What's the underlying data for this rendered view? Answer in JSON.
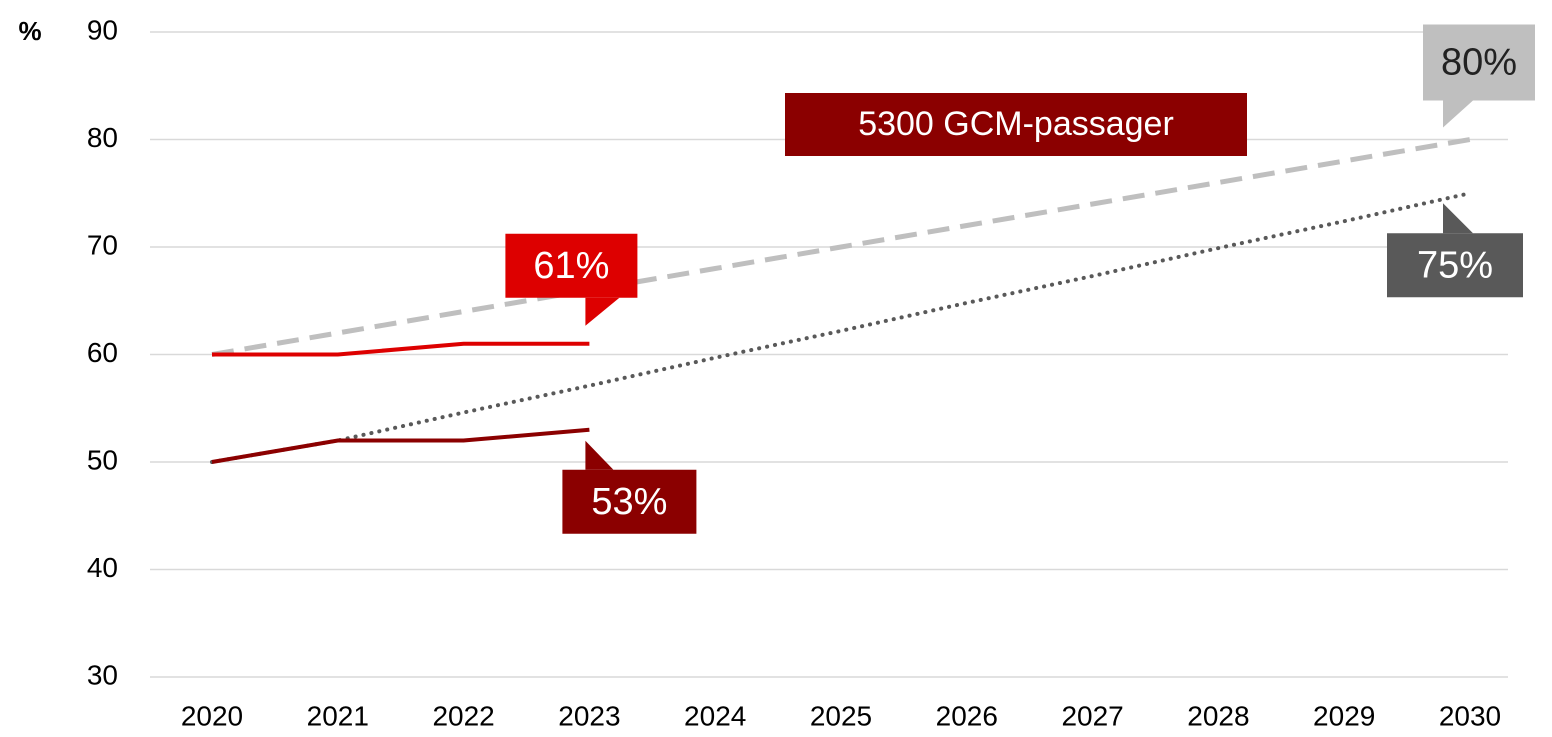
{
  "chart_data": {
    "type": "line",
    "y_label": "%",
    "annotations": [
      "5300 GCM-passager"
    ],
    "annotation_color": "#8b0000",
    "categories": [
      "2020",
      "2021",
      "2022",
      "2023",
      "2024",
      "2025",
      "2026",
      "2027",
      "2028",
      "2029",
      "2030"
    ],
    "series": [
      {
        "color": "#dd0000",
        "style": "solid",
        "values": [
          60,
          60,
          61,
          61,
          null,
          null,
          null,
          null,
          null,
          null,
          null
        ],
        "value_labels": [
          null,
          null,
          null,
          "61%",
          null,
          null,
          null,
          null,
          null,
          null,
          null
        ]
      },
      {
        "color": "#8b0000",
        "style": "solid",
        "values": [
          50,
          52,
          52,
          53,
          null,
          null,
          null,
          null,
          null,
          null,
          null
        ],
        "value_labels": [
          null,
          null,
          null,
          "53%",
          null,
          null,
          null,
          null,
          null,
          null,
          null
        ]
      },
      {
        "color": "#bfbfbf",
        "style": "dashed",
        "values": [
          60,
          62,
          64,
          66,
          68,
          70,
          72,
          74,
          76,
          78,
          80
        ],
        "value_labels": [
          null,
          null,
          null,
          null,
          null,
          null,
          null,
          null,
          null,
          null,
          "80%"
        ]
      },
      {
        "color": "#595959",
        "style": "dotted",
        "values": [
          50,
          52,
          54.6,
          57.1,
          59.7,
          62.2,
          64.8,
          67.3,
          69.9,
          72.4,
          75
        ],
        "value_labels": [
          null,
          null,
          null,
          null,
          null,
          null,
          null,
          null,
          null,
          null,
          "75%"
        ]
      }
    ],
    "ylim": [
      30,
      90
    ],
    "yticks": [
      30,
      40,
      50,
      60,
      70,
      80,
      90
    ],
    "grid": true
  }
}
